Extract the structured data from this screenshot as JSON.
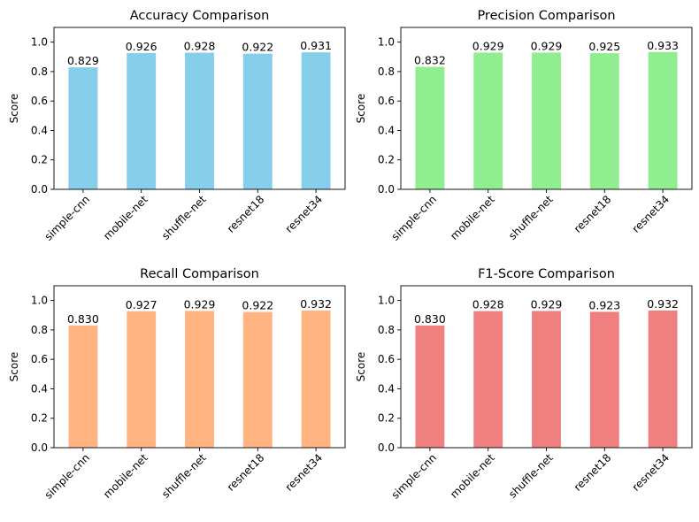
{
  "chart_data": [
    {
      "type": "bar",
      "title": "Accuracy Comparison",
      "xlabel": "",
      "ylabel": "Score",
      "ylim": [
        0,
        1.1
      ],
      "yticks": [
        "0.0",
        "0.2",
        "0.4",
        "0.6",
        "0.8",
        "1.0"
      ],
      "categories": [
        "simple-cnn",
        "mobile-net",
        "shuffle-net",
        "resnet18",
        "resnet34"
      ],
      "values": [
        0.829,
        0.926,
        0.928,
        0.922,
        0.931
      ],
      "value_labels": [
        "0.829",
        "0.926",
        "0.928",
        "0.922",
        "0.931"
      ],
      "color": "#87ceeb"
    },
    {
      "type": "bar",
      "title": "Precision Comparison",
      "xlabel": "",
      "ylabel": "Score",
      "ylim": [
        0,
        1.1
      ],
      "yticks": [
        "0.0",
        "0.2",
        "0.4",
        "0.6",
        "0.8",
        "1.0"
      ],
      "categories": [
        "simple-cnn",
        "mobile-net",
        "shuffle-net",
        "resnet18",
        "resnet34"
      ],
      "values": [
        0.832,
        0.929,
        0.929,
        0.925,
        0.933
      ],
      "value_labels": [
        "0.832",
        "0.929",
        "0.929",
        "0.925",
        "0.933"
      ],
      "color": "#90ee90"
    },
    {
      "type": "bar",
      "title": "Recall Comparison",
      "xlabel": "",
      "ylabel": "Score",
      "ylim": [
        0,
        1.1
      ],
      "yticks": [
        "0.0",
        "0.2",
        "0.4",
        "0.6",
        "0.8",
        "1.0"
      ],
      "categories": [
        "simple-cnn",
        "mobile-net",
        "shuffle-net",
        "resnet18",
        "resnet34"
      ],
      "values": [
        0.83,
        0.927,
        0.929,
        0.922,
        0.932
      ],
      "value_labels": [
        "0.830",
        "0.927",
        "0.929",
        "0.922",
        "0.932"
      ],
      "color": "#ffb482"
    },
    {
      "type": "bar",
      "title": "F1-Score Comparison",
      "xlabel": "",
      "ylabel": "Score",
      "ylim": [
        0,
        1.1
      ],
      "yticks": [
        "0.0",
        "0.2",
        "0.4",
        "0.6",
        "0.8",
        "1.0"
      ],
      "categories": [
        "simple-cnn",
        "mobile-net",
        "shuffle-net",
        "resnet18",
        "resnet34"
      ],
      "values": [
        0.83,
        0.928,
        0.929,
        0.923,
        0.932
      ],
      "value_labels": [
        "0.830",
        "0.928",
        "0.929",
        "0.923",
        "0.932"
      ],
      "color": "#f08080"
    }
  ]
}
